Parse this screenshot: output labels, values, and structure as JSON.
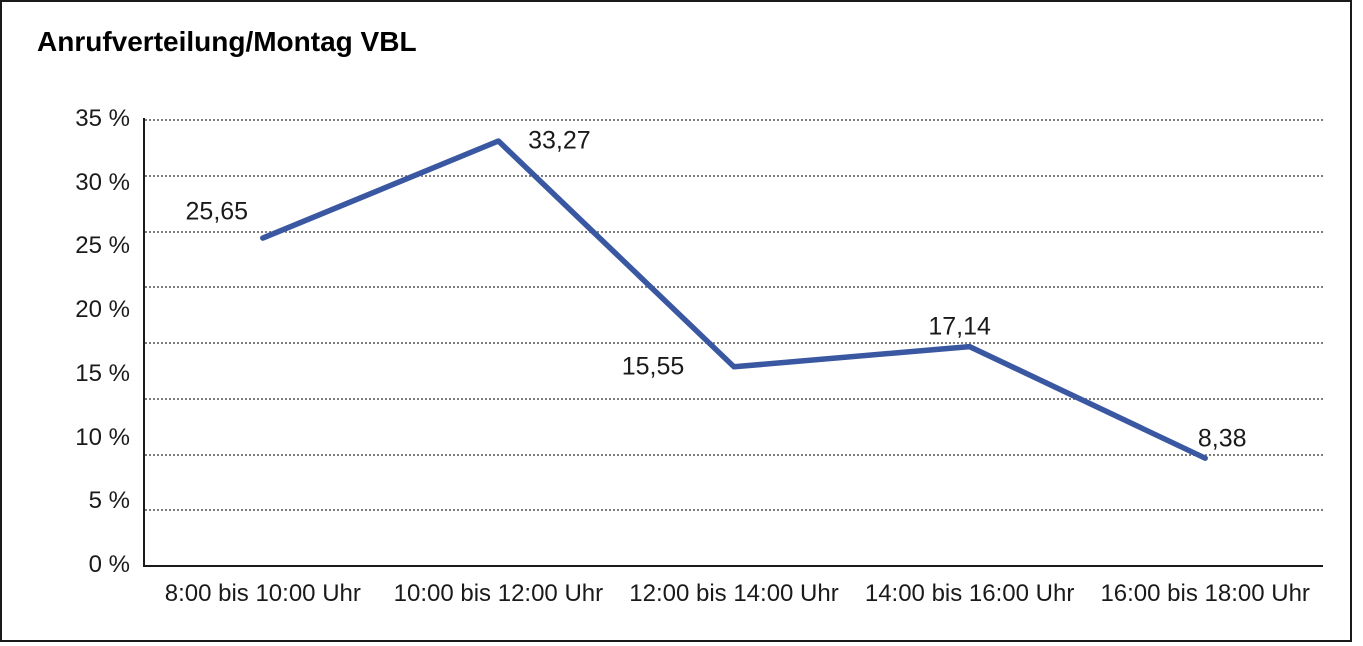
{
  "window": {
    "title": "Anrufverteilung/Montag VBL"
  },
  "colors": {
    "line": "#3a57a2",
    "text": "#1a1a1a",
    "grid": "#7d7d7d",
    "axis": "#1a1a1a",
    "frame_border": "#1a1a1a",
    "background": "#ffffff"
  },
  "chart_data": {
    "type": "line",
    "title": "Anrufverteilung/Montag VBL",
    "categories": [
      "8:00 bis 10:00 Uhr",
      "10:00 bis 12:00 Uhr",
      "12:00 bis 14:00 Uhr",
      "14:00 bis 16:00 Uhr",
      "16:00 bis 18:00 Uhr"
    ],
    "series": [
      {
        "values": [
          25.65,
          33.27,
          15.55,
          17.14,
          8.38
        ],
        "point_labels": [
          "25,65",
          "33,27",
          "15,55",
          "17,14",
          "8,38"
        ]
      }
    ],
    "xlabel": "",
    "ylabel": "",
    "ylim": [
      0,
      35
    ],
    "ytick_step": 5,
    "ytick_labels": [
      "0 %",
      "5 %",
      "10 %",
      "15 %",
      "20 %",
      "25 %",
      "30 %",
      "35 %"
    ],
    "grid": "horizontal-dotted",
    "legend_position": "none",
    "line_color": "#3a57a2"
  }
}
